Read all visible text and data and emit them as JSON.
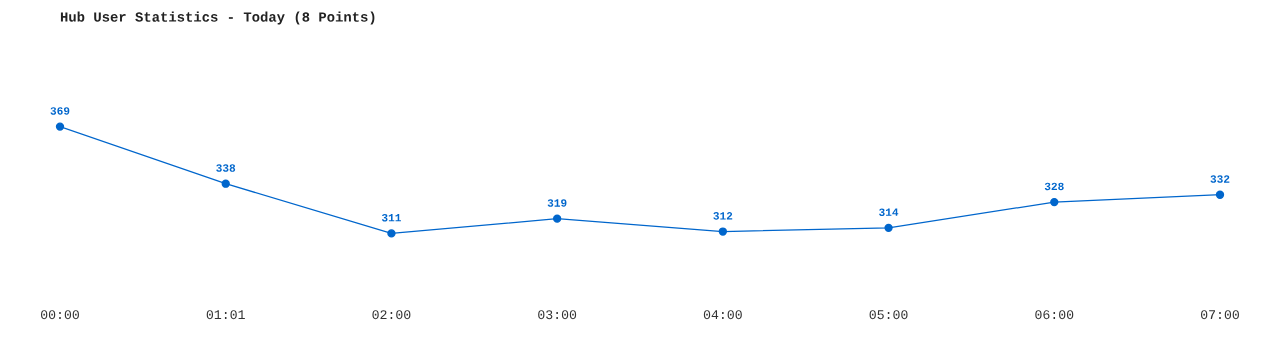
{
  "chart_data": {
    "type": "line",
    "title": "Hub User Statistics - Today (8 Points)",
    "categories": [
      "00:00",
      "01:01",
      "02:00",
      "03:00",
      "04:00",
      "05:00",
      "06:00",
      "07:00"
    ],
    "series": [
      {
        "color": "#0066cc",
        "values": [
          369,
          338,
          311,
          319,
          312,
          314,
          328,
          332
        ]
      }
    ],
    "tick_labels": "x",
    "data_labels": true,
    "marker": "circle",
    "line_style": "solid",
    "grid": false,
    "legend": false
  }
}
